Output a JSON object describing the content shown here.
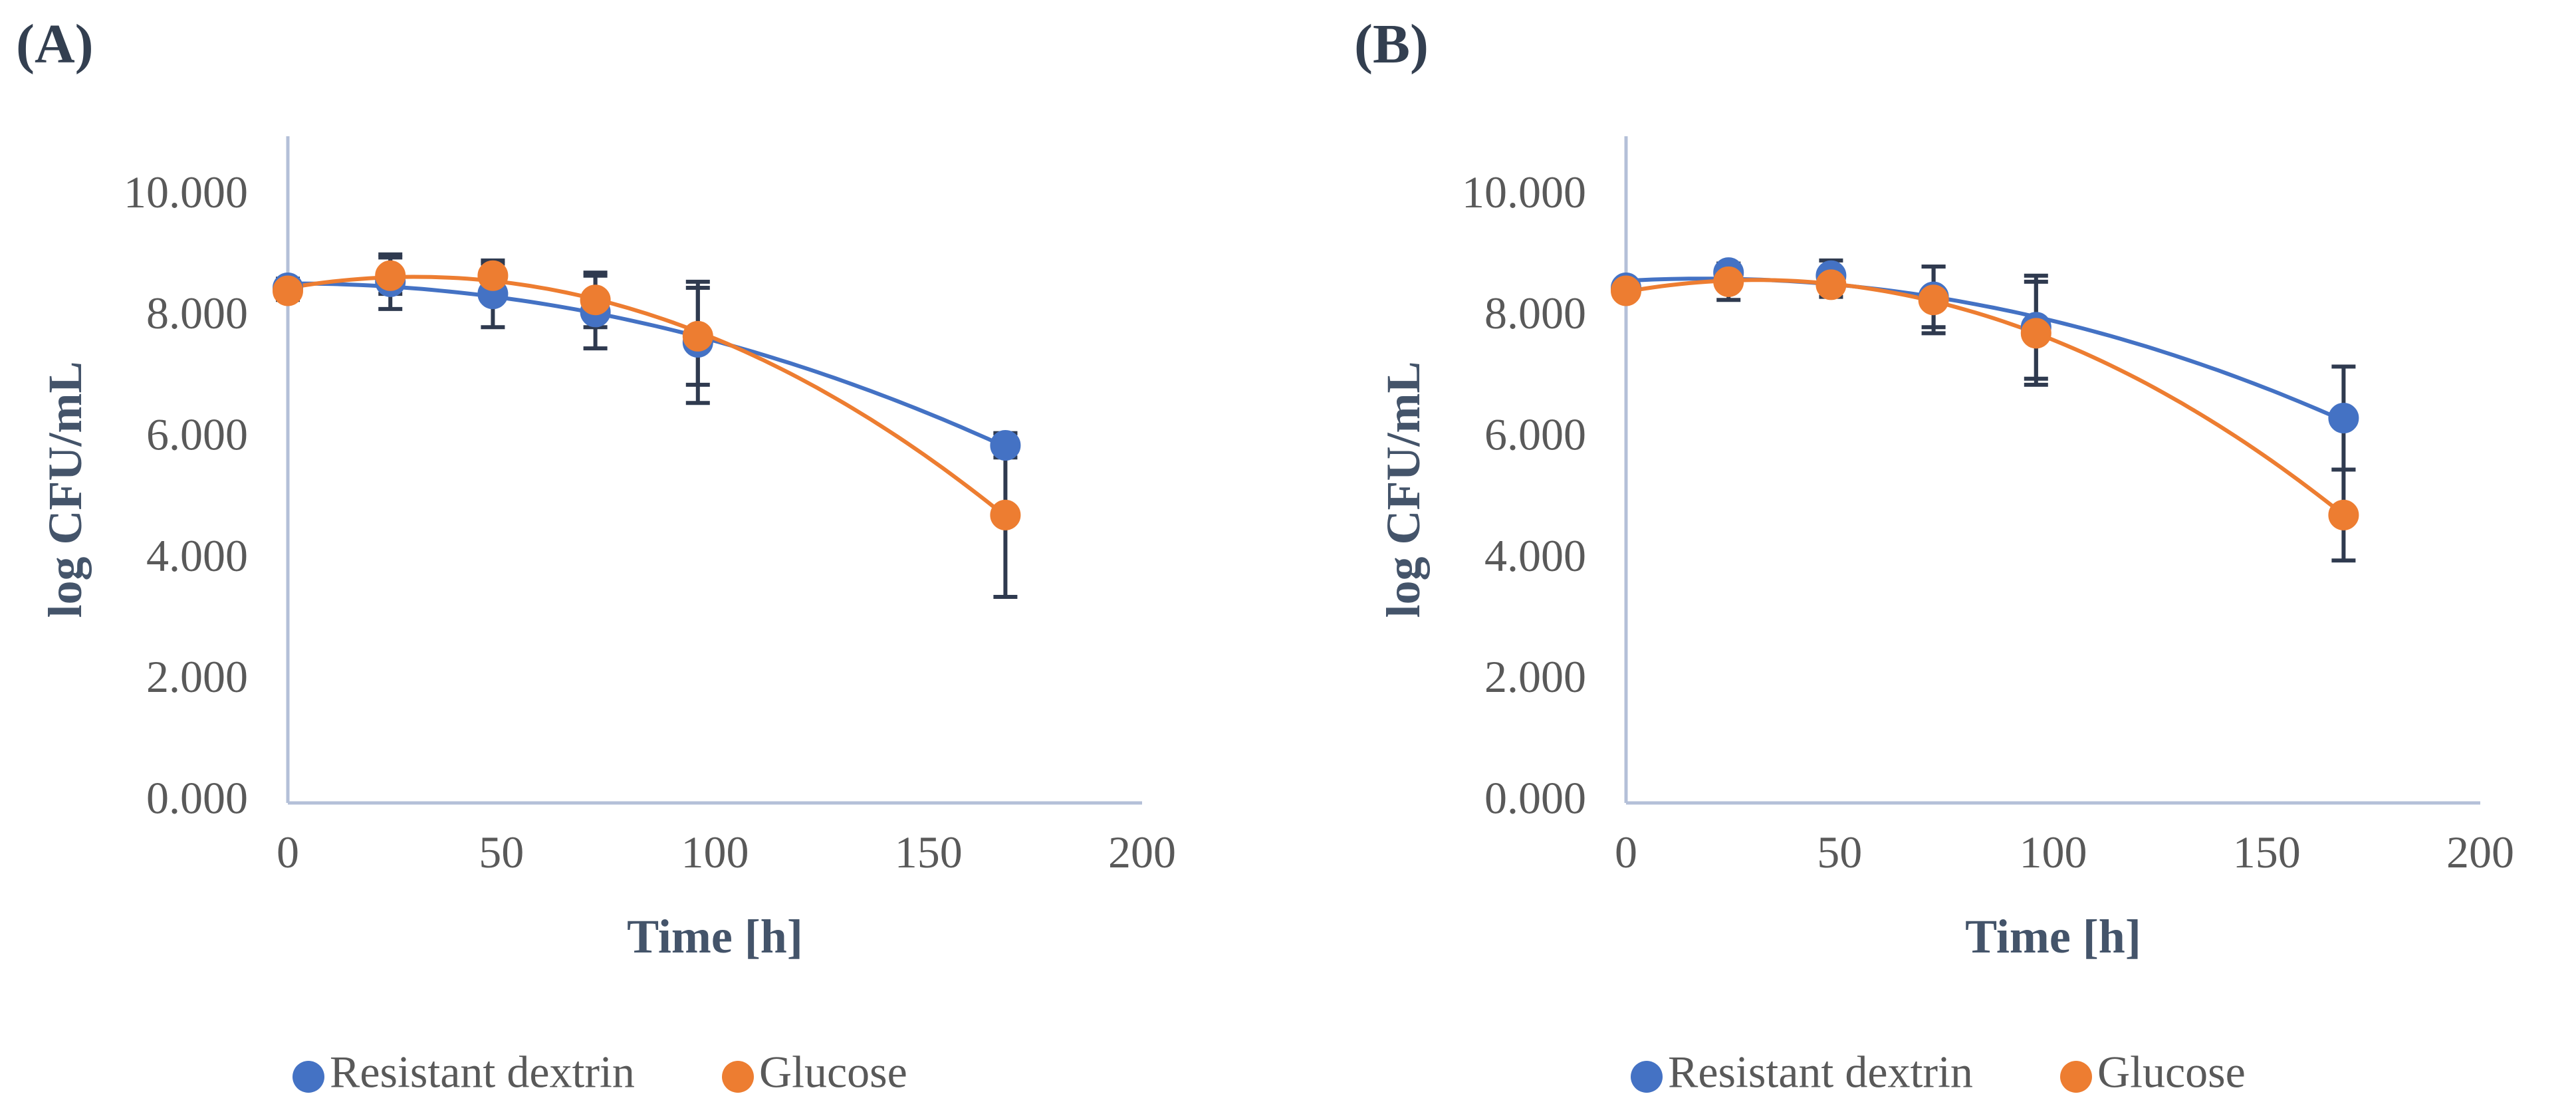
{
  "chart_data": [
    {
      "panel_label": "(A)",
      "type": "scatter",
      "xlabel": "Time [h]",
      "ylabel": "log CFU/mL",
      "xlim": [
        0,
        200
      ],
      "ylim": [
        0,
        11
      ],
      "x_ticks": [
        "0",
        "50",
        "100",
        "150",
        "200"
      ],
      "x_tick_values": [
        0,
        50,
        100,
        150,
        200
      ],
      "y_ticks": [
        "0.000",
        "2.000",
        "4.000",
        "6.000",
        "8.000",
        "10.000"
      ],
      "y_tick_values": [
        0,
        2,
        4,
        6,
        8,
        10
      ],
      "series": [
        {
          "name": "Resistant dextrin",
          "color": "#4472c4",
          "x": [
            0,
            24,
            48,
            72,
            96,
            168
          ],
          "values": [
            8.5,
            8.6,
            8.4,
            8.1,
            7.6,
            5.9
          ],
          "error": [
            0.15,
            0.45,
            0.55,
            0.6,
            1.0,
            0.2
          ]
        },
        {
          "name": "Glucose",
          "color": "#ed7d31",
          "x": [
            0,
            24,
            48,
            72,
            96,
            168
          ],
          "values": [
            8.45,
            8.7,
            8.7,
            8.3,
            7.7,
            4.75
          ],
          "error": [
            0.15,
            0.3,
            0.2,
            0.45,
            0.8,
            1.35
          ]
        }
      ],
      "legend": [
        "Resistant dextrin",
        "Glucose"
      ],
      "legend_position": "bottom"
    },
    {
      "panel_label": "(B)",
      "type": "scatter",
      "xlabel": "Time [h]",
      "ylabel": "log CFU/mL",
      "xlim": [
        0,
        200
      ],
      "ylim": [
        0,
        11
      ],
      "x_ticks": [
        "0",
        "50",
        "100",
        "150",
        "200"
      ],
      "x_tick_values": [
        0,
        50,
        100,
        150,
        200
      ],
      "y_ticks": [
        "0.000",
        "2.000",
        "4.000",
        "6.000",
        "8.000",
        "10.000"
      ],
      "y_tick_values": [
        0,
        2,
        4,
        6,
        8,
        10
      ],
      "series": [
        {
          "name": "Resistant dextrin",
          "color": "#4472c4",
          "x": [
            0,
            24,
            48,
            72,
            96,
            168
          ],
          "values": [
            8.5,
            8.75,
            8.7,
            8.35,
            7.85,
            6.35
          ],
          "error": [
            0.1,
            0.15,
            0.25,
            0.5,
            0.85,
            0.85
          ]
        },
        {
          "name": "Glucose",
          "color": "#ed7d31",
          "x": [
            0,
            24,
            48,
            72,
            96,
            168
          ],
          "values": [
            8.45,
            8.6,
            8.55,
            8.3,
            7.75,
            4.75
          ],
          "error": [
            0.1,
            0.3,
            0.2,
            0.55,
            0.85,
            0.75
          ]
        }
      ],
      "legend": [
        "Resistant dextrin",
        "Glucose"
      ],
      "legend_position": "bottom"
    }
  ],
  "style": {
    "axis_color": "#b4c0d8",
    "error_bar_color": "#2f3a4f"
  }
}
